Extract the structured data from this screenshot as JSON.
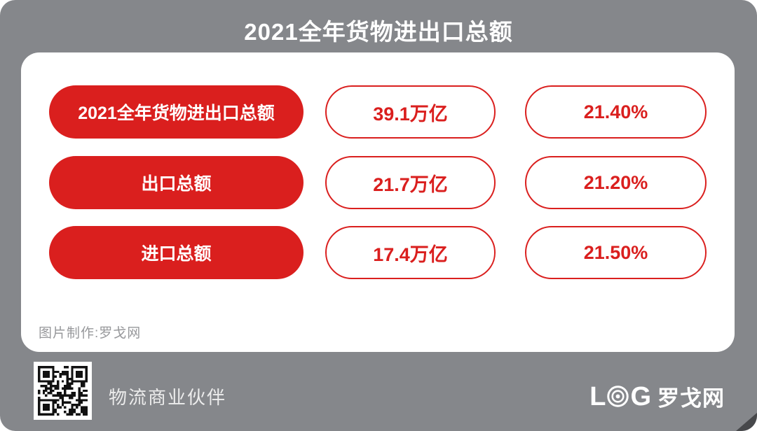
{
  "title": "2021全年货物进出口总额",
  "colors": {
    "accent_red": "#da1f1e",
    "panel_gray": "#85878b",
    "card_white": "#ffffff",
    "credit_gray": "#97989b"
  },
  "chart_data": {
    "type": "table",
    "title": "2021全年货物进出口总额",
    "rows": [
      {
        "label": "2021全年货物进出口总额",
        "amount": "39.1万亿",
        "growth": "21.40%"
      },
      {
        "label": "出口总额",
        "amount": "21.7万亿",
        "growth": "21.20%"
      },
      {
        "label": "进口总额",
        "amount": "17.4万亿",
        "growth": "21.50%"
      }
    ],
    "notes": "红色胶囊为指标名称，白底红框胶囊分别为金额与增长率"
  },
  "card": {
    "credit": "图片制作:罗戈网"
  },
  "footer": {
    "tagline": "物流商业伙伴",
    "logo_l": "L",
    "logo_g": "G",
    "logo_cn": "罗戈网"
  }
}
